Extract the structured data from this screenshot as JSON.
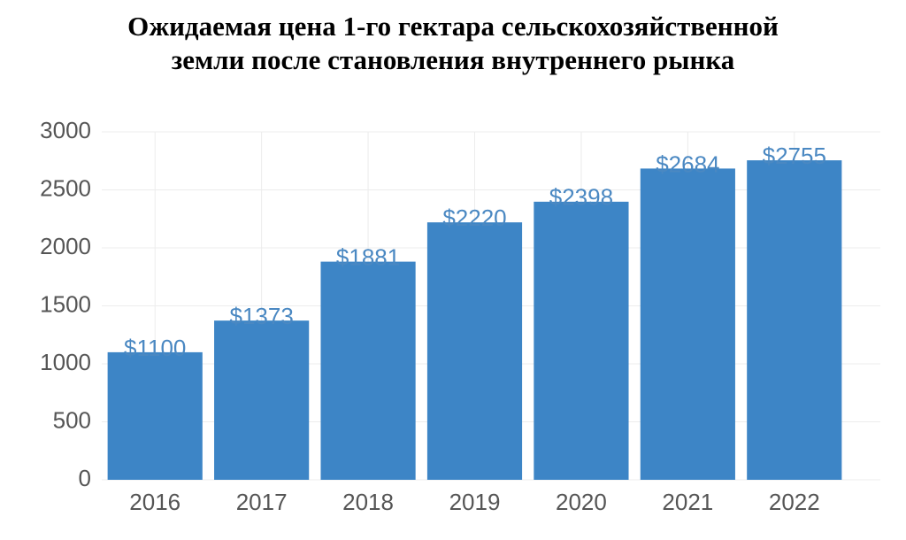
{
  "chart_data": {
    "type": "bar",
    "title": [
      "Ожидаемая цена 1-го гектара сельскохозяйственной",
      "земли после становления внутреннего рынка"
    ],
    "categories": [
      "2016",
      "2017",
      "2018",
      "2019",
      "2020",
      "2021",
      "2022"
    ],
    "values": [
      1100,
      1373,
      1881,
      2220,
      2398,
      2684,
      2755
    ],
    "value_labels": [
      "$1100",
      "$1373",
      "$1881",
      "$2220",
      "$2398",
      "$2684",
      "$2755"
    ],
    "color": "#3d85c6",
    "ylim": [
      0,
      3000
    ],
    "yticks": [
      0,
      500,
      1000,
      1500,
      2000,
      2500,
      3000
    ],
    "grid": true
  }
}
